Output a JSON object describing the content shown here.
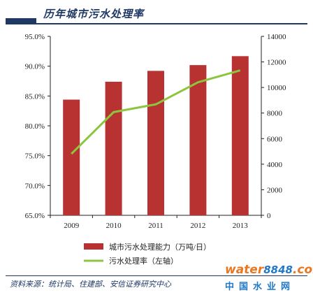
{
  "title": "历年城市污水处理率",
  "source": "资料来源：统计局、住建部、安信证券研究中心",
  "watermark": {
    "brand": "water",
    "brand_number": "8848",
    "brand_suffix": ".com",
    "cn": "中国水业网"
  },
  "colors": {
    "bar": "#b83232",
    "line": "#8cc63f",
    "title": "#1f3864",
    "axis": "#222222"
  },
  "chart_data": {
    "type": "bar",
    "categories": [
      "2009",
      "2010",
      "2011",
      "2012",
      "2013"
    ],
    "series": [
      {
        "name": "城市污水处理能力（万吨/日）",
        "type": "bar",
        "axis": "right",
        "values": [
          9050,
          10450,
          11300,
          11750,
          12450
        ]
      },
      {
        "name": "污水处理率（左轴）",
        "type": "line",
        "axis": "left",
        "values": [
          75.3,
          82.3,
          83.6,
          87.3,
          89.3
        ]
      }
    ],
    "y_left": {
      "lim": [
        65,
        95
      ],
      "ticks": [
        65,
        70,
        75,
        80,
        85,
        90,
        95
      ],
      "tick_labels": [
        "65.0%",
        "70.0%",
        "75.0%",
        "80.0%",
        "85.0%",
        "90.0%",
        "95.0%"
      ]
    },
    "y_right": {
      "lim": [
        0,
        14000
      ],
      "ticks": [
        0,
        2000,
        4000,
        6000,
        8000,
        10000,
        12000,
        14000
      ],
      "tick_labels": [
        "0",
        "2000",
        "4000",
        "6000",
        "8000",
        "10000",
        "12000",
        "14000"
      ]
    },
    "legend_position": "bottom",
    "grid": false
  }
}
